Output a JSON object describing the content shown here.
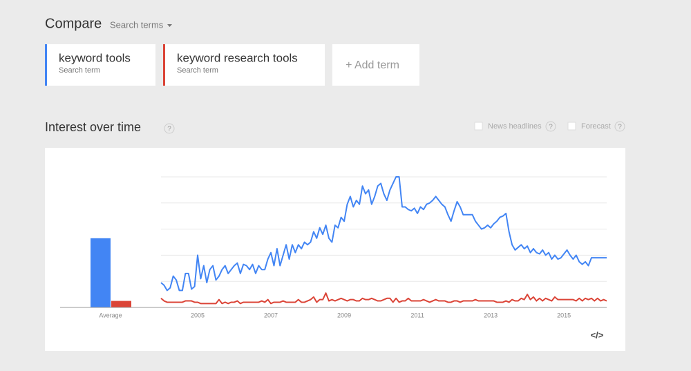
{
  "header": {
    "title": "Compare",
    "dropdown": "Search terms"
  },
  "terms_sublabel": [
    "Search term",
    "Search term"
  ],
  "add_term": "+ Add term",
  "section": {
    "title": "Interest over time",
    "help": "?",
    "options": [
      {
        "label": "News headlines",
        "help": "?"
      },
      {
        "label": "Forecast",
        "help": "?"
      }
    ]
  },
  "embed": "</>",
  "chart_data": [
    {
      "type": "bar",
      "categories": [
        "Average"
      ],
      "series": [
        {
          "color": "#4285f4",
          "values": [
            53
          ]
        },
        {
          "color": "#db4437",
          "values": [
            5
          ]
        }
      ],
      "ylim": [
        0,
        100
      ]
    },
    {
      "type": "line",
      "categories": [
        null,
        null,
        null,
        null,
        null,
        null,
        null,
        null,
        null,
        null,
        null,
        null,
        "2005",
        null,
        null,
        null,
        null,
        null,
        null,
        null,
        null,
        null,
        null,
        null,
        null,
        null,
        null,
        null,
        null,
        null,
        null,
        null,
        null,
        null,
        null,
        null,
        "2007",
        null,
        null,
        null,
        null,
        null,
        null,
        null,
        null,
        null,
        null,
        null,
        null,
        null,
        null,
        null,
        null,
        null,
        null,
        null,
        null,
        null,
        null,
        null,
        "2009",
        null,
        null,
        null,
        null,
        null,
        null,
        null,
        null,
        null,
        null,
        null,
        null,
        null,
        null,
        null,
        null,
        null,
        null,
        null,
        null,
        null,
        null,
        null,
        "2011",
        null,
        null,
        null,
        null,
        null,
        null,
        null,
        null,
        null,
        null,
        null,
        null,
        null,
        null,
        null,
        null,
        null,
        null,
        null,
        null,
        null,
        null,
        null,
        "2013",
        null,
        null,
        null,
        null,
        null,
        null,
        null,
        null,
        null,
        null,
        null,
        null,
        null,
        null,
        null,
        null,
        null,
        null,
        null,
        null,
        null,
        null,
        null,
        "2015",
        null,
        null,
        null,
        null,
        null,
        null,
        null,
        null,
        null,
        null,
        null,
        null,
        null,
        null
      ],
      "series": [
        {
          "name": "keyword tools",
          "color": "#4285f4",
          "values": [
            19,
            17,
            13,
            15,
            24,
            21,
            13,
            13,
            26,
            26,
            14,
            16,
            40,
            22,
            32,
            19,
            29,
            32,
            21,
            24,
            29,
            32,
            26,
            29,
            32,
            34,
            26,
            33,
            32,
            29,
            33,
            26,
            32,
            29,
            29,
            37,
            42,
            32,
            45,
            32,
            40,
            48,
            37,
            48,
            42,
            48,
            45,
            50,
            48,
            50,
            58,
            53,
            61,
            56,
            63,
            53,
            50,
            63,
            61,
            69,
            66,
            79,
            85,
            77,
            82,
            79,
            93,
            87,
            90,
            79,
            85,
            93,
            95,
            87,
            82,
            90,
            95,
            100,
            100,
            77,
            77,
            75,
            74,
            76,
            72,
            77,
            75,
            79,
            80,
            82,
            85,
            82,
            79,
            77,
            71,
            66,
            74,
            81,
            77,
            71,
            71,
            71,
            71,
            66,
            63,
            60,
            61,
            63,
            61,
            64,
            66,
            69,
            70,
            72,
            58,
            48,
            44,
            46,
            48,
            45,
            47,
            42,
            45,
            42,
            41,
            44,
            40,
            42,
            37,
            40,
            37,
            38,
            41,
            44,
            40,
            37,
            40,
            35,
            33,
            35,
            32,
            38,
            38,
            38,
            38,
            38,
            38
          ]
        },
        {
          "name": "keyword research tools",
          "color": "#db4437",
          "values": [
            7,
            5,
            4,
            4,
            4,
            4,
            4,
            4,
            5,
            5,
            5,
            4,
            4,
            3,
            3,
            3,
            3,
            3,
            3,
            6,
            3,
            4,
            3,
            4,
            4,
            5,
            3,
            4,
            4,
            4,
            4,
            4,
            4,
            5,
            4,
            6,
            3,
            4,
            4,
            4,
            5,
            4,
            4,
            4,
            4,
            6,
            4,
            4,
            5,
            6,
            8,
            4,
            6,
            6,
            11,
            5,
            6,
            5,
            6,
            7,
            6,
            5,
            6,
            6,
            5,
            5,
            7,
            6,
            6,
            7,
            6,
            5,
            5,
            6,
            7,
            7,
            4,
            7,
            4,
            5,
            5,
            7,
            5,
            5,
            5,
            5,
            6,
            5,
            4,
            5,
            6,
            5,
            5,
            5,
            4,
            4,
            5,
            5,
            4,
            5,
            5,
            5,
            5,
            6,
            5,
            5,
            5,
            5,
            5,
            5,
            4,
            4,
            4,
            5,
            4,
            6,
            5,
            5,
            7,
            6,
            10,
            6,
            8,
            5,
            7,
            5,
            7,
            6,
            5,
            8,
            6,
            6,
            6,
            6,
            6,
            6,
            5,
            7,
            5,
            7,
            6,
            7,
            5,
            7,
            5,
            6,
            5
          ]
        }
      ],
      "ylim": [
        0,
        100
      ],
      "yticks": [
        20,
        40,
        60,
        80,
        100
      ],
      "grid": true,
      "ytick_labels": false
    }
  ]
}
